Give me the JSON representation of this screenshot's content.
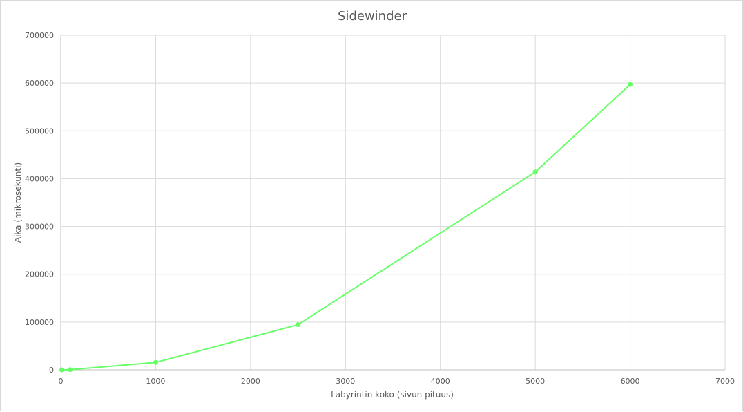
{
  "chart_data": {
    "type": "line",
    "title": "Sidewinder",
    "xlabel": "Labyrintin koko (sivun pituus)",
    "ylabel": "Aika (mikrosekunti)",
    "xlim": [
      0,
      7000
    ],
    "ylim": [
      0,
      700000
    ],
    "x_ticks": [
      0,
      1000,
      2000,
      3000,
      4000,
      5000,
      6000,
      7000
    ],
    "y_ticks": [
      0,
      100000,
      200000,
      300000,
      400000,
      500000,
      600000,
      700000
    ],
    "x_tick_labels": [
      "0",
      "1000",
      "2000",
      "3000",
      "4000",
      "5000",
      "6000",
      "7000"
    ],
    "y_tick_labels": [
      "0",
      "100000",
      "200000",
      "300000",
      "400000",
      "500000",
      "600000",
      "700000"
    ],
    "grid": true,
    "legend": "none",
    "series": [
      {
        "color": "#66ff66",
        "x": [
          10,
          100,
          1000,
          2500,
          5000,
          6000
        ],
        "y": [
          50,
          300,
          15500,
          94500,
          414000,
          597000
        ]
      }
    ]
  }
}
